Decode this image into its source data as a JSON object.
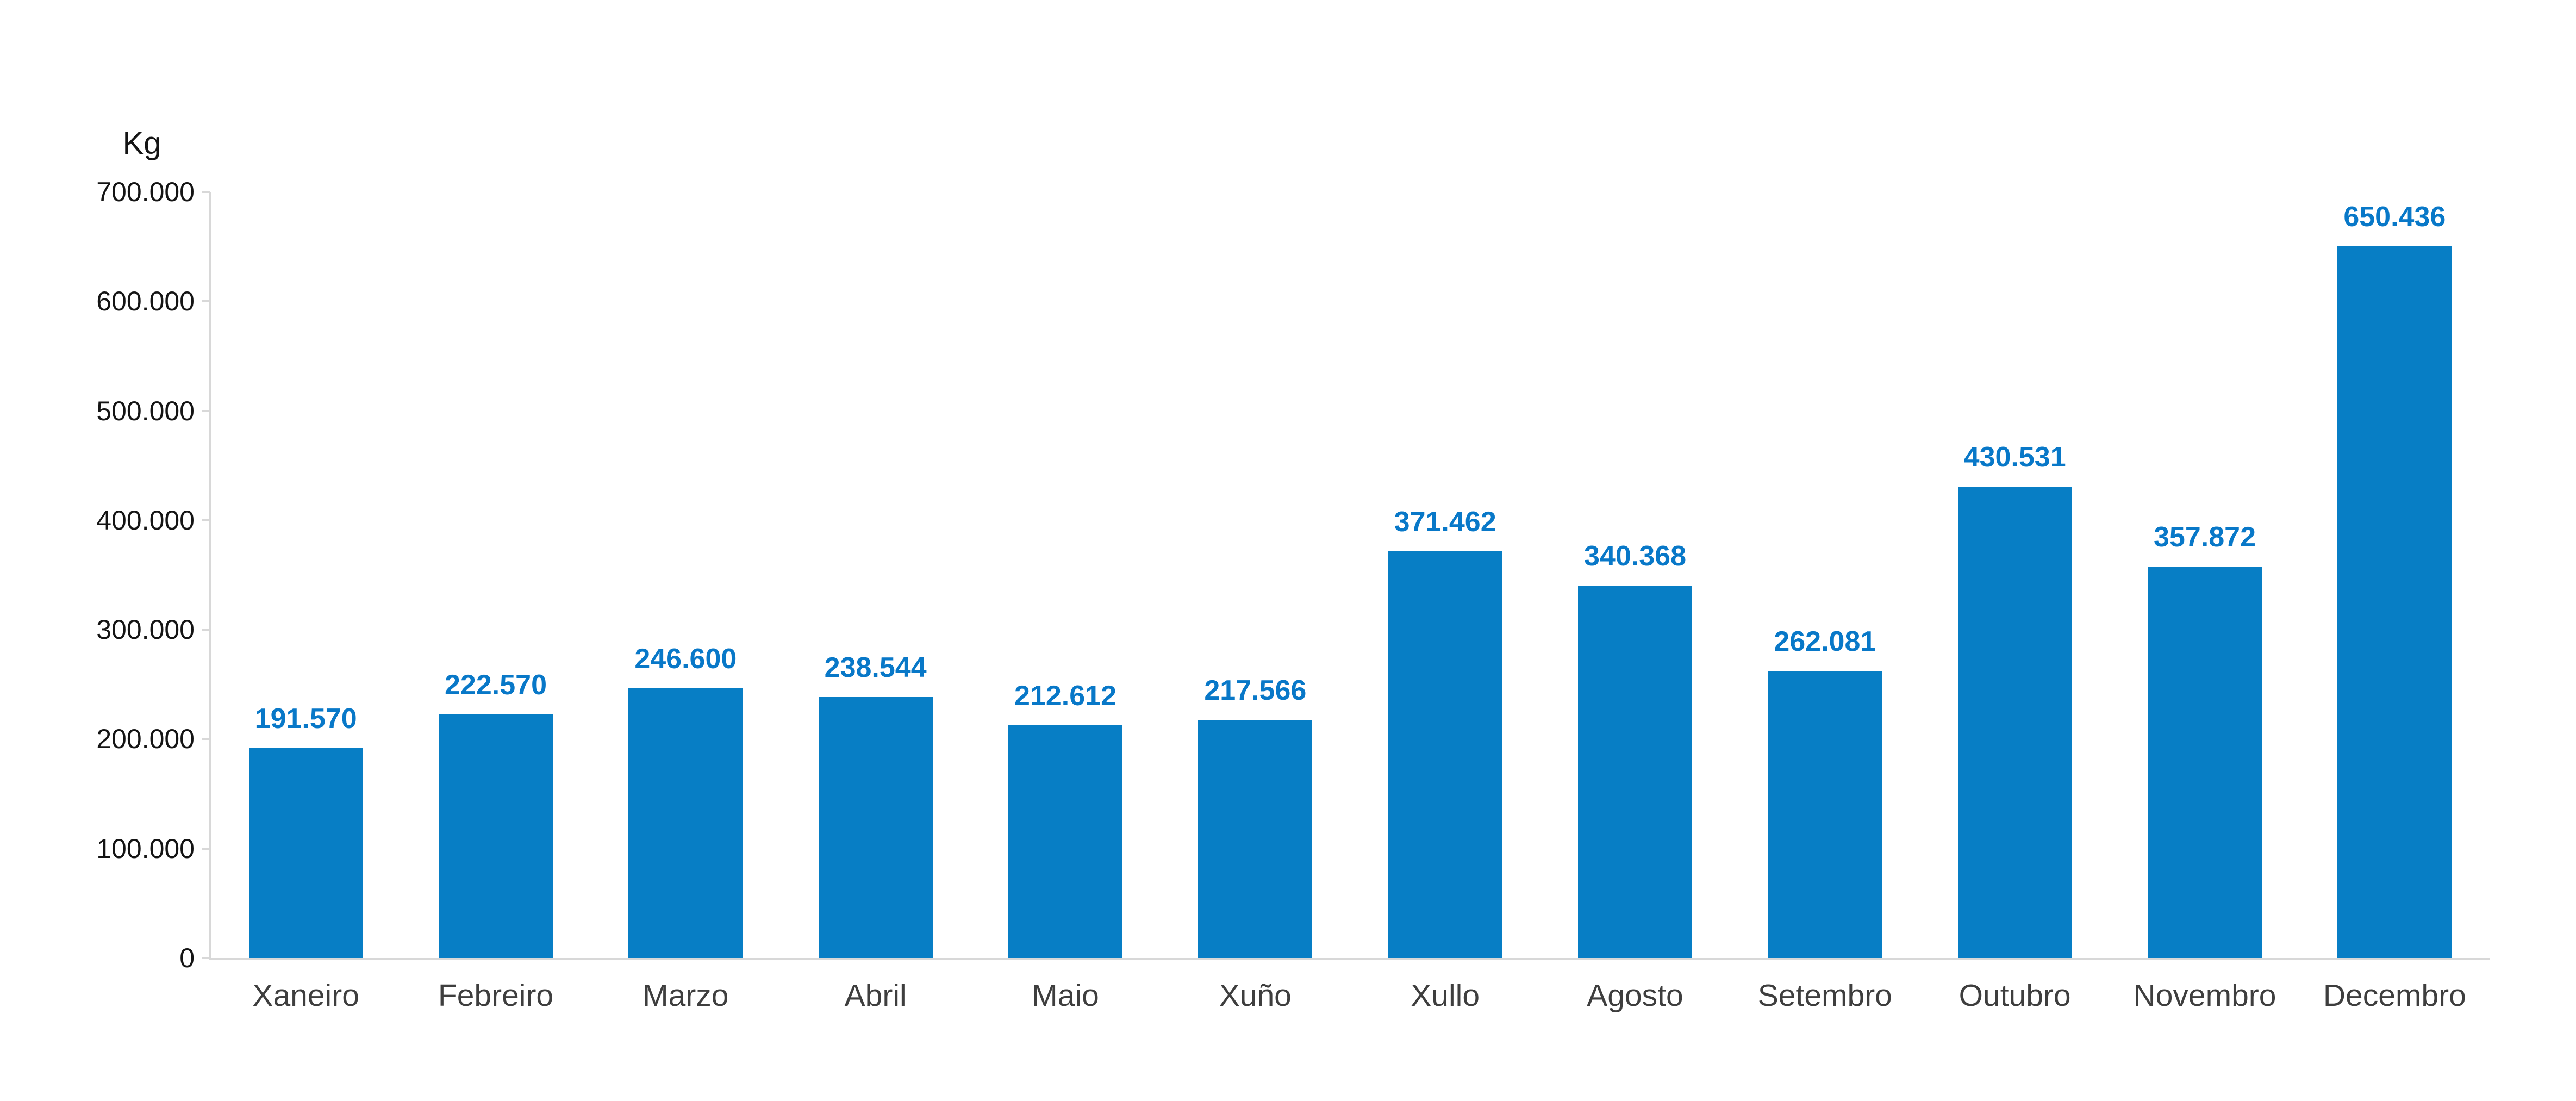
{
  "page": {
    "background": "#FFFFFF"
  },
  "chart_data": {
    "type": "bar",
    "title": "",
    "ylabel": "Kg",
    "categories": [
      "Xaneiro",
      "Febreiro",
      "Marzo",
      "Abril",
      "Maio",
      "Xuño",
      "Xullo",
      "Agosto",
      "Setembro",
      "Outubro",
      "Novembro",
      "Decembro"
    ],
    "values": [
      191570,
      222570,
      246600,
      238544,
      212612,
      217566,
      371462,
      340368,
      262081,
      430531,
      357872,
      650436
    ],
    "value_labels": [
      "191.570",
      "222.570",
      "246.600",
      "238.544",
      "212.612",
      "217.566",
      "371.462",
      "340.368",
      "262.081",
      "430.531",
      "357.872",
      "650.436"
    ],
    "xlabel": "",
    "ylim": [
      0,
      700000
    ],
    "ytick_interval": 100000,
    "ytick_labels": [
      "0",
      "100.000",
      "200.000",
      "300.000",
      "400.000",
      "500.000",
      "600.000",
      "700.000"
    ],
    "grid": false,
    "legend": "none",
    "bar_color": "#077EC5",
    "value_label_color": "#0878C8",
    "axis_color": "#D8D8D8",
    "ytick_text_color": "#141414",
    "category_text_color": "#3E3E3E"
  }
}
